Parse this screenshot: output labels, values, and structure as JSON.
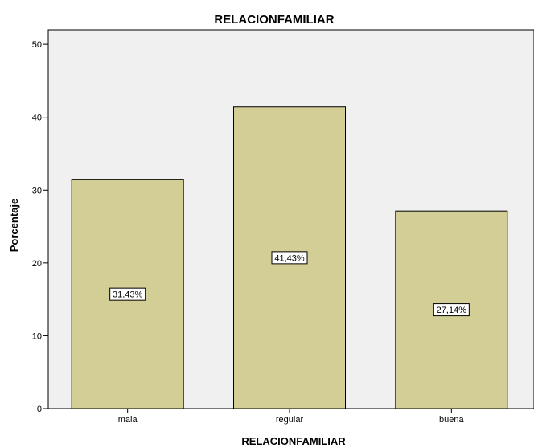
{
  "chart_data": {
    "type": "bar",
    "title": "RELACIONFAMILIAR",
    "xlabel": "RELACIONFAMILIAR",
    "ylabel": "Porcentaje",
    "categories": [
      "mala",
      "regular",
      "buena"
    ],
    "values": [
      31.43,
      41.43,
      27.14
    ],
    "data_labels": [
      "31,43%",
      "41,43%",
      "27,14%"
    ],
    "ylim": [
      0,
      52
    ],
    "yticks": [
      0,
      10,
      20,
      30,
      40,
      50
    ],
    "grid": false,
    "colors": {
      "bar_fill": "#d3ce96",
      "plot_background": "#f0f0f0",
      "bar_stroke": "#000000"
    }
  }
}
